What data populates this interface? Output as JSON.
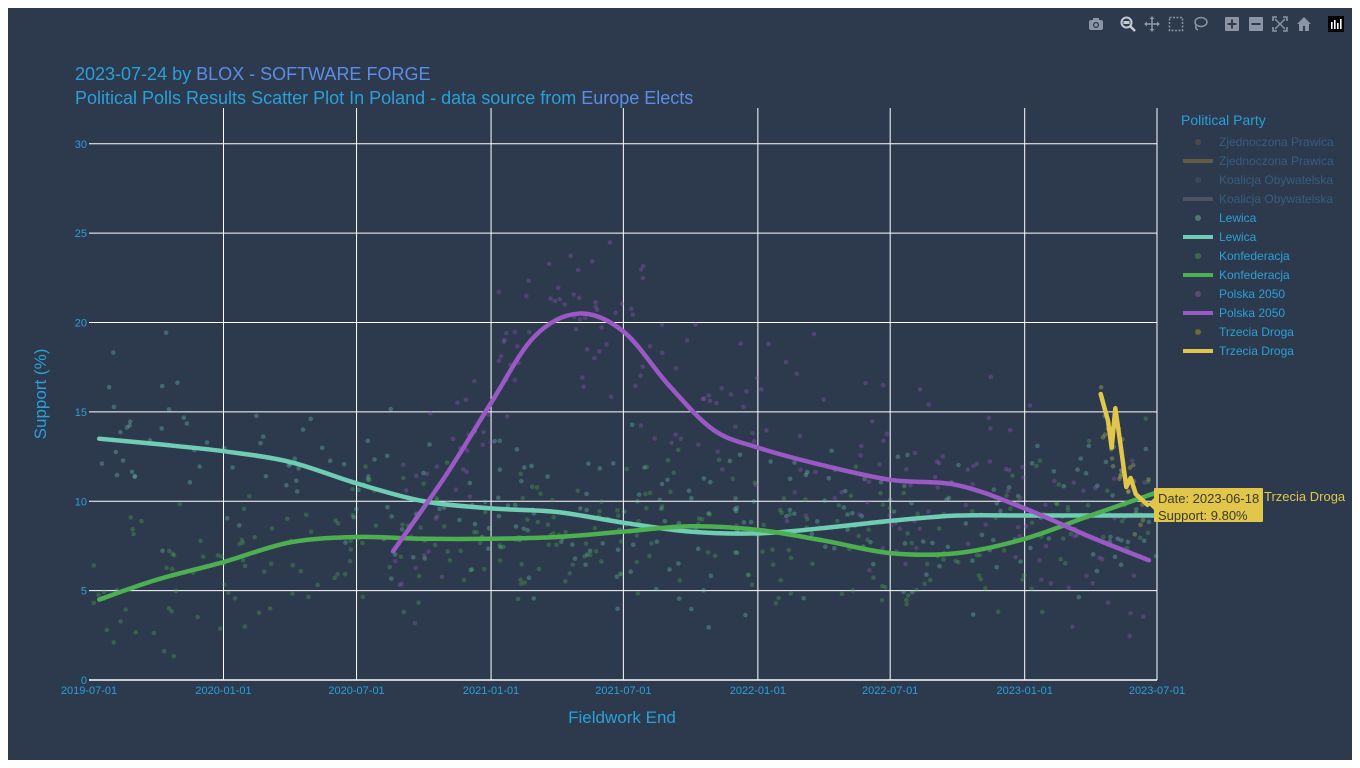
{
  "title": {
    "date": "2023-07-24 by ",
    "author": "BLOX - SOFTWARE FORGE",
    "subtitle_prefix": "Political Polls Results Scatter Plot In Poland - data source from ",
    "source": "Europe Elects"
  },
  "modebar": {
    "icons": [
      "camera-icon",
      "zoom-icon",
      "pan-icon",
      "box-select-icon",
      "lasso-icon",
      "zoom-in-icon",
      "zoom-out-icon",
      "autoscale-icon",
      "reset-axes-icon",
      "plotly-logo-icon"
    ]
  },
  "legend": {
    "title": "Political Party",
    "items": [
      {
        "label": "Zjednoczona Prawica",
        "kind": "dot",
        "color": "#6a5a3a",
        "hidden": true
      },
      {
        "label": "Zjednoczona Prawica",
        "kind": "line",
        "color": "#9a7a3a",
        "hidden": true
      },
      {
        "label": "Koalicja Obywatelska",
        "kind": "dot",
        "color": "#4a5568",
        "hidden": true
      },
      {
        "label": "Koalicja Obywatelska",
        "kind": "line",
        "color": "#6b6f78",
        "hidden": true
      },
      {
        "label": "Lewica",
        "kind": "dot",
        "color": "#4a7a70",
        "hidden": false
      },
      {
        "label": "Lewica",
        "kind": "line",
        "color": "#6ecdb2",
        "hidden": false
      },
      {
        "label": "Konfederacja",
        "kind": "dot",
        "color": "#3f6a45",
        "hidden": false
      },
      {
        "label": "Konfederacja",
        "kind": "line",
        "color": "#4caf50",
        "hidden": false
      },
      {
        "label": "Polska 2050",
        "kind": "dot",
        "color": "#5b4a75",
        "hidden": false
      },
      {
        "label": "Polska 2050",
        "kind": "line",
        "color": "#9b59c6",
        "hidden": false
      },
      {
        "label": "Trzecia Droga",
        "kind": "dot",
        "color": "#6a6a3a",
        "hidden": false
      },
      {
        "label": "Trzecia Droga",
        "kind": "line",
        "color": "#e1c64a",
        "hidden": false
      }
    ]
  },
  "tooltip": {
    "line1": "Date: 2023-06-18",
    "line2": "Support: 9.80%",
    "series": "Trzecia Droga"
  },
  "colors": {
    "background": "#2d3a4d",
    "grid": "#ffffff",
    "axis_text": "#2aa0d8"
  },
  "chart_data": {
    "type": "scatter",
    "xlabel": "Fieldwork End",
    "ylabel": "Support (%)",
    "xlim": [
      "2019-07-01",
      "2023-07-01"
    ],
    "ylim": [
      0,
      32
    ],
    "x_ticks": [
      "2019-07-01",
      "2020-01-01",
      "2020-07-01",
      "2021-01-01",
      "2021-07-01",
      "2022-01-01",
      "2022-07-01",
      "2023-01-01",
      "2023-07-01"
    ],
    "y_ticks": [
      0,
      5,
      10,
      15,
      20,
      25,
      30
    ],
    "grid": true,
    "legend_position": "right",
    "series": [
      {
        "name": "Lewica",
        "kind": "trend",
        "color": "#6ecdb2",
        "points": [
          [
            "2019-07-15",
            13.5
          ],
          [
            "2019-10-01",
            13.2
          ],
          [
            "2020-01-01",
            12.8
          ],
          [
            "2020-04-01",
            12.2
          ],
          [
            "2020-07-01",
            11.0
          ],
          [
            "2020-10-01",
            10.0
          ],
          [
            "2021-01-01",
            9.6
          ],
          [
            "2021-04-01",
            9.4
          ],
          [
            "2021-07-01",
            8.8
          ],
          [
            "2021-10-01",
            8.3
          ],
          [
            "2022-01-01",
            8.2
          ],
          [
            "2022-04-01",
            8.5
          ],
          [
            "2022-07-01",
            8.9
          ],
          [
            "2022-10-01",
            9.2
          ],
          [
            "2023-01-01",
            9.2
          ],
          [
            "2023-04-01",
            9.2
          ],
          [
            "2023-07-01",
            9.2
          ]
        ]
      },
      {
        "name": "Konfederacja",
        "kind": "trend",
        "color": "#4caf50",
        "points": [
          [
            "2019-07-15",
            4.5
          ],
          [
            "2019-10-01",
            5.6
          ],
          [
            "2020-01-01",
            6.6
          ],
          [
            "2020-04-01",
            7.7
          ],
          [
            "2020-07-01",
            8.0
          ],
          [
            "2020-10-01",
            7.9
          ],
          [
            "2021-01-01",
            7.9
          ],
          [
            "2021-04-01",
            8.0
          ],
          [
            "2021-07-01",
            8.3
          ],
          [
            "2021-10-01",
            8.6
          ],
          [
            "2022-01-01",
            8.4
          ],
          [
            "2022-04-01",
            7.8
          ],
          [
            "2022-07-01",
            7.1
          ],
          [
            "2022-10-01",
            7.1
          ],
          [
            "2023-01-01",
            7.9
          ],
          [
            "2023-04-01",
            9.2
          ],
          [
            "2023-07-01",
            10.5
          ]
        ]
      },
      {
        "name": "Polska 2050",
        "kind": "trend",
        "color": "#9b59c6",
        "points": [
          [
            "2020-08-20",
            7.2
          ],
          [
            "2020-11-01",
            11.5
          ],
          [
            "2021-01-01",
            15.5
          ],
          [
            "2021-03-01",
            19.2
          ],
          [
            "2021-05-01",
            20.5
          ],
          [
            "2021-07-01",
            19.5
          ],
          [
            "2021-09-01",
            16.5
          ],
          [
            "2021-11-01",
            14.0
          ],
          [
            "2022-01-01",
            13.0
          ],
          [
            "2022-04-01",
            12.0
          ],
          [
            "2022-07-01",
            11.2
          ],
          [
            "2022-10-01",
            10.9
          ],
          [
            "2023-01-01",
            9.6
          ],
          [
            "2023-04-01",
            8.0
          ],
          [
            "2023-06-20",
            6.7
          ]
        ]
      },
      {
        "name": "Trzecia Droga",
        "kind": "trend",
        "color": "#e1c64a",
        "points": [
          [
            "2023-04-15",
            16.0
          ],
          [
            "2023-04-25",
            14.5
          ],
          [
            "2023-04-30",
            13.0
          ],
          [
            "2023-05-05",
            15.2
          ],
          [
            "2023-05-12",
            13.2
          ],
          [
            "2023-05-20",
            10.8
          ],
          [
            "2023-05-26",
            11.3
          ],
          [
            "2023-06-02",
            10.4
          ],
          [
            "2023-06-10",
            10.1
          ],
          [
            "2023-06-18",
            9.8
          ]
        ]
      },
      {
        "name": "Lewica",
        "kind": "cloud",
        "color": "#6ecdb2",
        "center_trend": 0,
        "spread": 2.2,
        "count": 260,
        "start": "2019-07-01",
        "end": "2023-06-30",
        "seed": 11
      },
      {
        "name": "Konfederacja",
        "kind": "cloud",
        "color": "#4caf50",
        "center_trend": 1,
        "spread": 2.0,
        "count": 300,
        "start": "2019-07-01",
        "end": "2023-06-30",
        "seed": 23
      },
      {
        "name": "Polska 2050",
        "kind": "cloud",
        "color": "#9b59c6",
        "center_trend": 2,
        "spread": 2.6,
        "count": 220,
        "start": "2020-08-20",
        "end": "2023-06-20",
        "seed": 37
      },
      {
        "name": "Trzecia Droga",
        "kind": "cloud",
        "color": "#c9c65a",
        "center_trend": 3,
        "spread": 1.4,
        "count": 30,
        "start": "2023-04-15",
        "end": "2023-06-20",
        "seed": 53
      }
    ]
  }
}
